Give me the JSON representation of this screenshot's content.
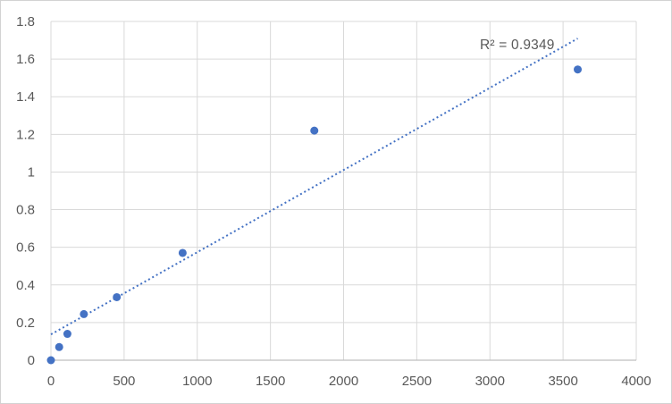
{
  "frame": {
    "background": "#ffffff",
    "border_color": "#d2d2d2"
  },
  "chart_data": {
    "type": "scatter",
    "title": "",
    "xlabel": "",
    "ylabel": "",
    "xlim": [
      0,
      4000
    ],
    "ylim": [
      0,
      1.8
    ],
    "grid": true,
    "legend": false,
    "x_tick_values": [
      0,
      500,
      1000,
      1500,
      2000,
      2500,
      3000,
      3500,
      4000
    ],
    "x_tick_labels": [
      "0",
      "500",
      "1000",
      "1500",
      "2000",
      "2500",
      "3000",
      "3500",
      "4000"
    ],
    "y_tick_values": [
      0,
      0.2,
      0.4,
      0.6,
      0.8,
      1,
      1.2,
      1.4,
      1.6,
      1.8
    ],
    "y_tick_labels": [
      "0",
      "0.2",
      "0.4",
      "0.6",
      "0.8",
      "1",
      "1.2",
      "1.4",
      "1.6",
      "1.8"
    ],
    "series": [
      {
        "name": "standard-curve-points",
        "marker": "circle",
        "marker_color": "#4472c4",
        "marker_radius_px": 4.5,
        "points": [
          {
            "x": 0,
            "y": 0.0
          },
          {
            "x": 56.25,
            "y": 0.07
          },
          {
            "x": 112.5,
            "y": 0.14
          },
          {
            "x": 225,
            "y": 0.245
          },
          {
            "x": 450,
            "y": 0.335
          },
          {
            "x": 900,
            "y": 0.57
          },
          {
            "x": 1800,
            "y": 1.22
          },
          {
            "x": 3600,
            "y": 1.545
          }
        ]
      }
    ],
    "trendline": {
      "style": "dotted",
      "color": "#4472c4",
      "slope": 0.0004368,
      "intercept": 0.137,
      "x_start": 0,
      "x_end": 3600,
      "r_squared": 0.9349
    },
    "annotation": {
      "r_squared_label": "R² = 0.9349"
    },
    "colors": {
      "gridline": "#d9d9d9",
      "axis_line": "#bfbfbf",
      "tick_label": "#595959",
      "annotation_text": "#595959"
    }
  }
}
